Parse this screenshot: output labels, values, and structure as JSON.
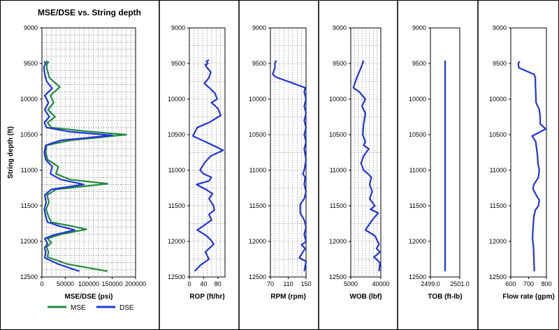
{
  "chart_data": [
    {
      "type": "line",
      "title": "MSE/DSE vs. String depth",
      "xlabel": "MSE/DSE (psi)",
      "ylabel": "String depth (ft)",
      "xlim": [
        0,
        200000
      ],
      "ylim": [
        9000,
        12500
      ],
      "x_ticks": [
        "0",
        "50000",
        "100000",
        "150000",
        "200000"
      ],
      "y_ticks": [
        "9000",
        "9500",
        "10000",
        "10500",
        "11000",
        "11500",
        "12000",
        "12500"
      ],
      "grid": true,
      "legend": "bottom",
      "series": [
        {
          "name": "MSE",
          "color": "#1f8a3c",
          "points": [
            [
              9000,
              9470
            ],
            [
              14000,
              9480
            ],
            [
              11000,
              9500
            ],
            [
              10000,
              9560
            ],
            [
              16000,
              9700
            ],
            [
              38000,
              9830
            ],
            [
              18000,
              9950
            ],
            [
              25000,
              10050
            ],
            [
              13000,
              10150
            ],
            [
              28000,
              10250
            ],
            [
              12000,
              10330
            ],
            [
              20000,
              10400
            ],
            [
              90000,
              10450
            ],
            [
              180000,
              10500
            ],
            [
              60000,
              10580
            ],
            [
              10000,
              10650
            ],
            [
              8000,
              10750
            ],
            [
              12000,
              10850
            ],
            [
              35000,
              10950
            ],
            [
              30000,
              11050
            ],
            [
              60000,
              11130
            ],
            [
              140000,
              11190
            ],
            [
              30000,
              11270
            ],
            [
              11000,
              11350
            ],
            [
              15000,
              11450
            ],
            [
              9000,
              11550
            ],
            [
              14000,
              11650
            ],
            [
              20000,
              11730
            ],
            [
              60000,
              11780
            ],
            [
              95000,
              11830
            ],
            [
              40000,
              11900
            ],
            [
              12000,
              11960
            ],
            [
              20000,
              12020
            ],
            [
              10000,
              12080
            ],
            [
              14000,
              12150
            ],
            [
              12000,
              12220
            ],
            [
              55000,
              12320
            ],
            [
              140000,
              12420
            ]
          ]
        },
        {
          "name": "DSE",
          "color": "#1f35e0",
          "points": [
            [
              5000,
              9470
            ],
            [
              8000,
              9500
            ],
            [
              4000,
              9550
            ],
            [
              6000,
              9650
            ],
            [
              10000,
              9750
            ],
            [
              22000,
              9850
            ],
            [
              6000,
              9950
            ],
            [
              14000,
              10050
            ],
            [
              6000,
              10150
            ],
            [
              16000,
              10250
            ],
            [
              5000,
              10330
            ],
            [
              10000,
              10400
            ],
            [
              60000,
              10460
            ],
            [
              150000,
              10510
            ],
            [
              40000,
              10580
            ],
            [
              8000,
              10650
            ],
            [
              5000,
              10750
            ],
            [
              8000,
              10850
            ],
            [
              22000,
              10950
            ],
            [
              18000,
              11050
            ],
            [
              40000,
              11130
            ],
            [
              90000,
              11200
            ],
            [
              20000,
              11270
            ],
            [
              6000,
              11350
            ],
            [
              9000,
              11450
            ],
            [
              5000,
              11550
            ],
            [
              8000,
              11650
            ],
            [
              12000,
              11730
            ],
            [
              40000,
              11790
            ],
            [
              70000,
              11840
            ],
            [
              25000,
              11910
            ],
            [
              6000,
              11960
            ],
            [
              12000,
              12030
            ],
            [
              6000,
              12090
            ],
            [
              8000,
              12160
            ],
            [
              6000,
              12230
            ],
            [
              35000,
              12320
            ],
            [
              80000,
              12420
            ]
          ]
        }
      ]
    },
    {
      "type": "line",
      "xlabel": "ROP (ft/hr)",
      "xlim": [
        0,
        100
      ],
      "x_ticks": [
        "0",
        "40",
        "80"
      ],
      "ylim": [
        9000,
        12500
      ],
      "y_ticks": [
        "9000",
        "9500",
        "10000",
        "10500",
        "11000",
        "11500",
        "12000",
        "12500"
      ],
      "grid": true,
      "series": [
        {
          "color": "#1f35e0",
          "points": [
            [
              55,
              9450
            ],
            [
              48,
              9470
            ],
            [
              52,
              9500
            ],
            [
              45,
              9520
            ],
            [
              50,
              9560
            ],
            [
              60,
              9620
            ],
            [
              55,
              9700
            ],
            [
              42,
              9780
            ],
            [
              58,
              9850
            ],
            [
              72,
              9920
            ],
            [
              78,
              10000
            ],
            [
              62,
              10050
            ],
            [
              80,
              10130
            ],
            [
              88,
              10230
            ],
            [
              55,
              10330
            ],
            [
              22,
              10400
            ],
            [
              10,
              10520
            ],
            [
              45,
              10600
            ],
            [
              70,
              10660
            ],
            [
              95,
              10720
            ],
            [
              60,
              10800
            ],
            [
              42,
              10900
            ],
            [
              30,
              11000
            ],
            [
              40,
              11050
            ],
            [
              62,
              11100
            ],
            [
              55,
              11150
            ],
            [
              20,
              11200
            ],
            [
              50,
              11280
            ],
            [
              65,
              11330
            ],
            [
              55,
              11400
            ],
            [
              68,
              11500
            ],
            [
              70,
              11560
            ],
            [
              55,
              11620
            ],
            [
              62,
              11700
            ],
            [
              40,
              11780
            ],
            [
              22,
              11840
            ],
            [
              48,
              11920
            ],
            [
              62,
              11990
            ],
            [
              68,
              12040
            ],
            [
              45,
              12150
            ],
            [
              55,
              12250
            ],
            [
              32,
              12330
            ],
            [
              15,
              12420
            ]
          ]
        }
      ]
    },
    {
      "type": "line",
      "xlabel": "RPM (rpm)",
      "xlim": [
        70,
        150
      ],
      "x_ticks": [
        "70",
        "110",
        "150"
      ],
      "ylim": [
        9000,
        12500
      ],
      "y_ticks": [
        "9000",
        "9500",
        "10000",
        "10500",
        "11000",
        "11500",
        "12000",
        "12500"
      ],
      "grid": true,
      "series": [
        {
          "color": "#1f35e0",
          "points": [
            [
              83,
              9460
            ],
            [
              80,
              9500
            ],
            [
              80,
              9560
            ],
            [
              75,
              9650
            ],
            [
              82,
              9690
            ],
            [
              148,
              9840
            ],
            [
              146,
              9900
            ],
            [
              150,
              10000
            ],
            [
              146,
              10100
            ],
            [
              150,
              10200
            ],
            [
              146,
              10300
            ],
            [
              150,
              10400
            ],
            [
              146,
              10500
            ],
            [
              150,
              10600
            ],
            [
              146,
              10700
            ],
            [
              150,
              10850
            ],
            [
              146,
              11000
            ],
            [
              143,
              11050
            ],
            [
              148,
              11100
            ],
            [
              146,
              11200
            ],
            [
              150,
              11300
            ],
            [
              146,
              11400
            ],
            [
              137,
              11480
            ],
            [
              137,
              11600
            ],
            [
              146,
              11700
            ],
            [
              150,
              11800
            ],
            [
              146,
              11900
            ],
            [
              150,
              12000
            ],
            [
              140,
              12050
            ],
            [
              148,
              12100
            ],
            [
              135,
              12230
            ],
            [
              150,
              12280
            ],
            [
              146,
              12420
            ]
          ]
        }
      ]
    },
    {
      "type": "line",
      "xlabel": "WOB (lbf)",
      "xlim": [
        5000,
        40000
      ],
      "x_ticks": [
        "5000",
        "40000"
      ],
      "ylim": [
        9000,
        12500
      ],
      "y_ticks": [
        "9000",
        "9500",
        "10000",
        "10500",
        "11000",
        "11500",
        "12000",
        "12500"
      ],
      "grid": true,
      "series": [
        {
          "color": "#1f35e0",
          "points": [
            [
              20000,
              9460
            ],
            [
              17000,
              9560
            ],
            [
              12000,
              9700
            ],
            [
              8000,
              9840
            ],
            [
              15000,
              9900
            ],
            [
              22000,
              10000
            ],
            [
              18000,
              10100
            ],
            [
              22000,
              10200
            ],
            [
              20000,
              10350
            ],
            [
              19000,
              10500
            ],
            [
              22000,
              10600
            ],
            [
              20000,
              10650
            ],
            [
              26000,
              10700
            ],
            [
              20000,
              10800
            ],
            [
              17000,
              10900
            ],
            [
              20000,
              11000
            ],
            [
              25000,
              11050
            ],
            [
              29000,
              11100
            ],
            [
              27000,
              11200
            ],
            [
              30000,
              11300
            ],
            [
              27000,
              11400
            ],
            [
              33000,
              11500
            ],
            [
              28000,
              11550
            ],
            [
              37000,
              11600
            ],
            [
              30000,
              11700
            ],
            [
              22000,
              11840
            ],
            [
              33000,
              11920
            ],
            [
              36000,
              11990
            ],
            [
              38000,
              12040
            ],
            [
              35000,
              12100
            ],
            [
              39000,
              12150
            ],
            [
              32000,
              12220
            ],
            [
              39000,
              12300
            ],
            [
              38000,
              12420
            ]
          ]
        }
      ]
    },
    {
      "type": "line",
      "xlabel": "TOB (ft-lb)",
      "xlim": [
        2499.0,
        2501.0
      ],
      "x_ticks": [
        "2499.0",
        "2501.0"
      ],
      "ylim": [
        9000,
        12500
      ],
      "y_ticks": [
        "9000",
        "9500",
        "10000",
        "10500",
        "11000",
        "11500",
        "12000",
        "12500"
      ],
      "grid": false,
      "series": [
        {
          "color": "#1f35e0",
          "points": [
            [
              2500.0,
              9460
            ],
            [
              2500.0,
              12420
            ]
          ]
        }
      ]
    },
    {
      "type": "line",
      "xlabel": "Flow rate (gpm)",
      "xlim": [
        600,
        800
      ],
      "x_ticks": [
        "600",
        "700",
        "800"
      ],
      "ylim": [
        9000,
        12500
      ],
      "y_ticks": [
        "9000",
        "9500",
        "10000",
        "10500",
        "11000",
        "11500",
        "12000",
        "12500"
      ],
      "grid": false,
      "series": [
        {
          "color": "#1f35e0",
          "points": [
            [
              650,
              9470
            ],
            [
              642,
              9500
            ],
            [
              645,
              9560
            ],
            [
              718,
              9640
            ],
            [
              730,
              9650
            ],
            [
              738,
              9700
            ],
            [
              738,
              9800
            ],
            [
              740,
              9900
            ],
            [
              742,
              10050
            ],
            [
              760,
              10150
            ],
            [
              765,
              10250
            ],
            [
              765,
              10350
            ],
            [
              796,
              10420
            ],
            [
              750,
              10480
            ],
            [
              720,
              10520
            ],
            [
              740,
              10600
            ],
            [
              745,
              10700
            ],
            [
              750,
              10800
            ],
            [
              752,
              10900
            ],
            [
              760,
              11000
            ],
            [
              755,
              11100
            ],
            [
              730,
              11200
            ],
            [
              724,
              11260
            ],
            [
              745,
              11360
            ],
            [
              760,
              11420
            ],
            [
              755,
              11500
            ],
            [
              738,
              11560
            ],
            [
              730,
              11650
            ],
            [
              725,
              11800
            ],
            [
              722,
              11950
            ],
            [
              728,
              12100
            ],
            [
              730,
              12250
            ],
            [
              732,
              12420
            ]
          ]
        }
      ]
    }
  ]
}
